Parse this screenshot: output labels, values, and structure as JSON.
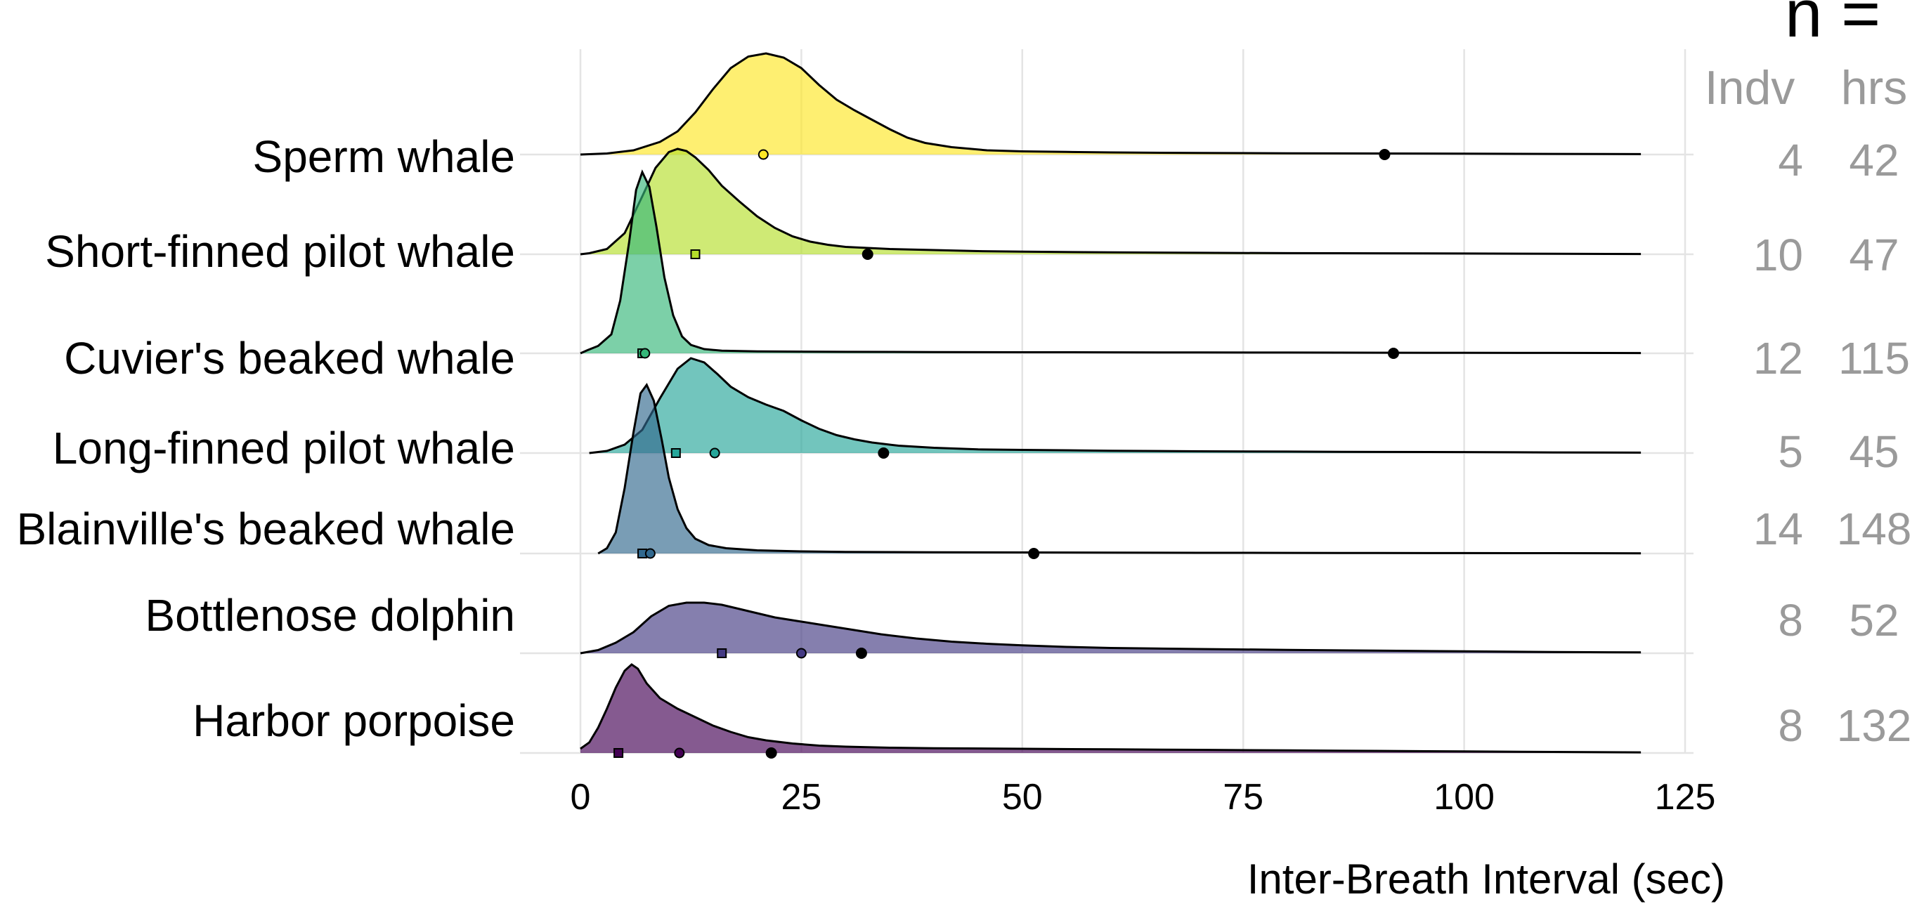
{
  "chart_data": {
    "type": "area",
    "subtype": "ridgeline-density",
    "xlabel": "Inter-Breath Interval (sec)",
    "xlim": [
      0,
      125
    ],
    "x_ticks": [
      0,
      25,
      50,
      75,
      100,
      125
    ],
    "grid": true,
    "sample_size_title": "n =",
    "sample_size_headers": [
      "Indv",
      "hrs"
    ],
    "series": [
      {
        "name": "Sperm whale",
        "color": "#FDE725",
        "indv": "4",
        "hrs": "42",
        "points": [
          {
            "shape": "circle",
            "fill": "open",
            "x": 20.7
          },
          {
            "shape": "circle",
            "fill": "filled",
            "x": 91
          }
        ],
        "density": [
          [
            0,
            0
          ],
          [
            3,
            0.01
          ],
          [
            6,
            0.04
          ],
          [
            9,
            0.12
          ],
          [
            11,
            0.22
          ],
          [
            13,
            0.4
          ],
          [
            15,
            0.62
          ],
          [
            17,
            0.82
          ],
          [
            19,
            0.93
          ],
          [
            21,
            0.96
          ],
          [
            23,
            0.92
          ],
          [
            25,
            0.82
          ],
          [
            27,
            0.66
          ],
          [
            29,
            0.52
          ],
          [
            31,
            0.42
          ],
          [
            33,
            0.33
          ],
          [
            35,
            0.24
          ],
          [
            37,
            0.16
          ],
          [
            39,
            0.11
          ],
          [
            42,
            0.07
          ],
          [
            46,
            0.04
          ],
          [
            50,
            0.03
          ],
          [
            55,
            0.025
          ],
          [
            60,
            0.02
          ],
          [
            70,
            0.015
          ],
          [
            80,
            0.012
          ],
          [
            90,
            0.01
          ],
          [
            100,
            0.008
          ],
          [
            110,
            0.006
          ],
          [
            120,
            0.004
          ]
        ]
      },
      {
        "name": "Short-finned pilot whale",
        "color": "#B5DE2B",
        "indv": "10",
        "hrs": "47",
        "points": [
          {
            "shape": "square",
            "fill": "open",
            "x": 13
          },
          {
            "shape": "circle",
            "fill": "filled",
            "x": 32.5
          }
        ],
        "density": [
          [
            0,
            0
          ],
          [
            1,
            0.01
          ],
          [
            3,
            0.05
          ],
          [
            5,
            0.2
          ],
          [
            7,
            0.55
          ],
          [
            8.5,
            0.82
          ],
          [
            10,
            0.97
          ],
          [
            11,
            1.0
          ],
          [
            12,
            0.98
          ],
          [
            13,
            0.92
          ],
          [
            14.5,
            0.8
          ],
          [
            16,
            0.65
          ],
          [
            18,
            0.5
          ],
          [
            20,
            0.36
          ],
          [
            22,
            0.25
          ],
          [
            24,
            0.17
          ],
          [
            26,
            0.12
          ],
          [
            28,
            0.09
          ],
          [
            30,
            0.07
          ],
          [
            35,
            0.05
          ],
          [
            40,
            0.04
          ],
          [
            45,
            0.03
          ],
          [
            50,
            0.025
          ],
          [
            60,
            0.018
          ],
          [
            70,
            0.014
          ],
          [
            80,
            0.011
          ],
          [
            90,
            0.009
          ],
          [
            100,
            0.007
          ],
          [
            110,
            0.005
          ],
          [
            120,
            0.003
          ]
        ]
      },
      {
        "name": "Cuvier's beaked whale",
        "color": "#35B779",
        "indv": "12",
        "hrs": "115",
        "points": [
          {
            "shape": "square",
            "fill": "open",
            "x": 7
          },
          {
            "shape": "circle",
            "fill": "open",
            "x": 7.3
          },
          {
            "shape": "circle",
            "fill": "filled",
            "x": 92
          }
        ],
        "density": [
          [
            0,
            0
          ],
          [
            0.8,
            0.03
          ],
          [
            2,
            0.07
          ],
          [
            3.5,
            0.18
          ],
          [
            4.5,
            0.5
          ],
          [
            5.5,
            1.05
          ],
          [
            6.3,
            1.55
          ],
          [
            7,
            1.72
          ],
          [
            7.8,
            1.58
          ],
          [
            8.6,
            1.2
          ],
          [
            9.5,
            0.72
          ],
          [
            10.5,
            0.36
          ],
          [
            11.5,
            0.16
          ],
          [
            12.5,
            0.08
          ],
          [
            14,
            0.04
          ],
          [
            16,
            0.025
          ],
          [
            20,
            0.018
          ],
          [
            30,
            0.014
          ],
          [
            40,
            0.012
          ],
          [
            50,
            0.01
          ],
          [
            60,
            0.009
          ],
          [
            70,
            0.008
          ],
          [
            80,
            0.007
          ],
          [
            90,
            0.006
          ],
          [
            100,
            0.005
          ],
          [
            110,
            0.004
          ],
          [
            120,
            0.003
          ]
        ]
      },
      {
        "name": "Long-finned pilot whale",
        "color": "#26A69A",
        "indv": "5",
        "hrs": "45",
        "points": [
          {
            "shape": "square",
            "fill": "open",
            "x": 10.8
          },
          {
            "shape": "circle",
            "fill": "open",
            "x": 15.2
          },
          {
            "shape": "circle",
            "fill": "filled",
            "x": 34.3
          }
        ],
        "density": [
          [
            1,
            0
          ],
          [
            3,
            0.02
          ],
          [
            5,
            0.08
          ],
          [
            7,
            0.22
          ],
          [
            9,
            0.52
          ],
          [
            11,
            0.8
          ],
          [
            12.5,
            0.9
          ],
          [
            14,
            0.86
          ],
          [
            15.5,
            0.75
          ],
          [
            17,
            0.63
          ],
          [
            19,
            0.53
          ],
          [
            21,
            0.46
          ],
          [
            23,
            0.4
          ],
          [
            25,
            0.31
          ],
          [
            27,
            0.23
          ],
          [
            29,
            0.17
          ],
          [
            31,
            0.13
          ],
          [
            33,
            0.1
          ],
          [
            36,
            0.07
          ],
          [
            40,
            0.05
          ],
          [
            45,
            0.035
          ],
          [
            50,
            0.03
          ],
          [
            60,
            0.022
          ],
          [
            70,
            0.017
          ],
          [
            80,
            0.014
          ],
          [
            90,
            0.011
          ],
          [
            100,
            0.009
          ],
          [
            110,
            0.006
          ],
          [
            120,
            0.004
          ]
        ]
      },
      {
        "name": "Blainville's beaked whale",
        "color": "#31688E",
        "indv": "14",
        "hrs": "148",
        "points": [
          {
            "shape": "square",
            "fill": "open",
            "x": 7
          },
          {
            "shape": "circle",
            "fill": "open",
            "x": 7.9
          },
          {
            "shape": "circle",
            "fill": "filled",
            "x": 51.3
          }
        ],
        "density": [
          [
            2,
            0
          ],
          [
            3,
            0.05
          ],
          [
            4,
            0.2
          ],
          [
            5,
            0.62
          ],
          [
            6,
            1.15
          ],
          [
            6.8,
            1.52
          ],
          [
            7.5,
            1.6
          ],
          [
            8.3,
            1.45
          ],
          [
            9.2,
            1.08
          ],
          [
            10,
            0.72
          ],
          [
            11,
            0.42
          ],
          [
            12,
            0.24
          ],
          [
            13,
            0.14
          ],
          [
            14.5,
            0.08
          ],
          [
            16.5,
            0.05
          ],
          [
            20,
            0.03
          ],
          [
            25,
            0.02
          ],
          [
            30,
            0.015
          ],
          [
            40,
            0.012
          ],
          [
            50,
            0.01
          ],
          [
            60,
            0.008
          ],
          [
            70,
            0.007
          ],
          [
            80,
            0.006
          ],
          [
            90,
            0.005
          ],
          [
            100,
            0.004
          ],
          [
            110,
            0.003
          ],
          [
            120,
            0.002
          ]
        ]
      },
      {
        "name": "Bottlenose dolphin",
        "color": "#443A83",
        "indv": "8",
        "hrs": "52",
        "points": [
          {
            "shape": "square",
            "fill": "open",
            "x": 16
          },
          {
            "shape": "circle",
            "fill": "open",
            "x": 25
          },
          {
            "shape": "circle",
            "fill": "filled",
            "x": 31.8
          }
        ],
        "density": [
          [
            0,
            0
          ],
          [
            2,
            0.03
          ],
          [
            4,
            0.1
          ],
          [
            6,
            0.2
          ],
          [
            8,
            0.35
          ],
          [
            10,
            0.45
          ],
          [
            12,
            0.48
          ],
          [
            14,
            0.48
          ],
          [
            16,
            0.46
          ],
          [
            18,
            0.42
          ],
          [
            20,
            0.38
          ],
          [
            22,
            0.34
          ],
          [
            25,
            0.3
          ],
          [
            28,
            0.26
          ],
          [
            31,
            0.22
          ],
          [
            34,
            0.18
          ],
          [
            38,
            0.14
          ],
          [
            42,
            0.11
          ],
          [
            46,
            0.09
          ],
          [
            50,
            0.075
          ],
          [
            55,
            0.06
          ],
          [
            60,
            0.05
          ],
          [
            65,
            0.045
          ],
          [
            70,
            0.04
          ],
          [
            80,
            0.032
          ],
          [
            90,
            0.025
          ],
          [
            100,
            0.018
          ],
          [
            110,
            0.012
          ],
          [
            120,
            0.008
          ]
        ]
      },
      {
        "name": "Harbor porpoise",
        "color": "#440154",
        "indv": "8",
        "hrs": "132",
        "points": [
          {
            "shape": "square",
            "fill": "open",
            "x": 4.3
          },
          {
            "shape": "circle",
            "fill": "open",
            "x": 11.2
          },
          {
            "shape": "circle",
            "fill": "filled",
            "x": 21.6
          }
        ],
        "density": [
          [
            0,
            0.04
          ],
          [
            1,
            0.1
          ],
          [
            2,
            0.24
          ],
          [
            3,
            0.42
          ],
          [
            4,
            0.62
          ],
          [
            5,
            0.78
          ],
          [
            5.8,
            0.84
          ],
          [
            6.5,
            0.8
          ],
          [
            7.5,
            0.66
          ],
          [
            9,
            0.52
          ],
          [
            11,
            0.42
          ],
          [
            13,
            0.34
          ],
          [
            15,
            0.26
          ],
          [
            17,
            0.2
          ],
          [
            19,
            0.15
          ],
          [
            21,
            0.12
          ],
          [
            24,
            0.09
          ],
          [
            27,
            0.07
          ],
          [
            30,
            0.06
          ],
          [
            35,
            0.05
          ],
          [
            40,
            0.045
          ],
          [
            50,
            0.04
          ],
          [
            60,
            0.035
          ],
          [
            70,
            0.03
          ],
          [
            80,
            0.025
          ],
          [
            90,
            0.02
          ],
          [
            100,
            0.015
          ],
          [
            110,
            0.01
          ],
          [
            120,
            0.006
          ]
        ]
      }
    ]
  }
}
